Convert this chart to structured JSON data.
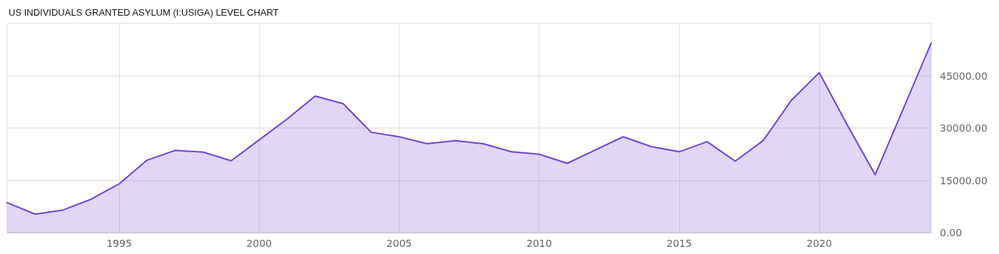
{
  "chart_data": {
    "type": "area",
    "title": "US INDIVIDUALS GRANTED ASYLUM (I:USIGA) LEVEL CHART",
    "x": [
      1991,
      1992,
      1993,
      1994,
      1995,
      1996,
      1997,
      1998,
      1999,
      2000,
      2001,
      2002,
      2003,
      2004,
      2005,
      2006,
      2007,
      2008,
      2009,
      2010,
      2011,
      2012,
      2013,
      2014,
      2015,
      2016,
      2017,
      2018,
      2019,
      2020,
      2021,
      2022,
      2023,
      2024
    ],
    "series": [
      {
        "color": "#6f3fd6",
        "values": [
          8600,
          5300,
          6500,
          9600,
          14000,
          20800,
          23600,
          23100,
          20600,
          26600,
          32600,
          39200,
          37000,
          28800,
          27500,
          25500,
          26400,
          25500,
          23200,
          22500,
          19900,
          23700,
          27500,
          24700,
          23200,
          26100,
          20500,
          26400,
          37900,
          45900,
          30900,
          16600,
          35500,
          54400
        ]
      }
    ],
    "xlim": [
      1991,
      2024
    ],
    "xticks": [
      1995,
      2000,
      2005,
      2010,
      2015,
      2020
    ],
    "ylim": [
      0,
      60000
    ],
    "yticks": [
      {
        "value": 0,
        "label": "0.00"
      },
      {
        "value": 15000,
        "label": "15000.00"
      },
      {
        "value": 30000,
        "label": "30000.00"
      },
      {
        "value": 45000,
        "label": "45000.00"
      }
    ],
    "grid": true,
    "marker": "none",
    "line_style": "solid"
  }
}
